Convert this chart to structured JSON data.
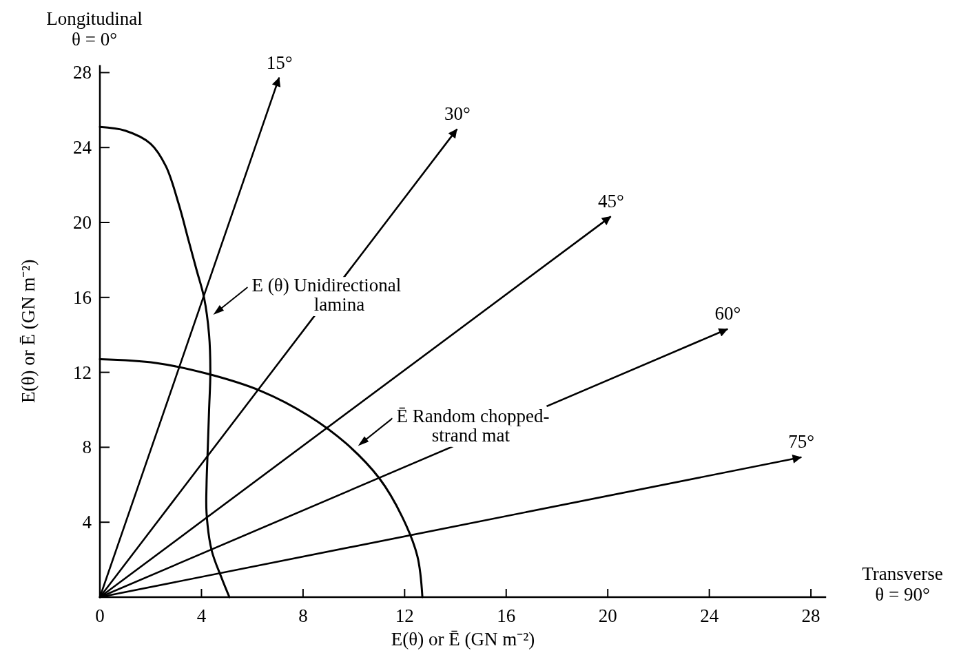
{
  "chart_data": {
    "type": "line",
    "xlabel": "E(θ) or Ē (GN m⁻²)",
    "ylabel": "E(θ) or Ē (GN m⁻²)",
    "xlim": [
      0,
      28.6
    ],
    "ylim": [
      0,
      28.4
    ],
    "xticks": [
      0,
      4,
      8,
      12,
      16,
      20,
      24,
      28
    ],
    "yticks": [
      4,
      8,
      12,
      16,
      20,
      24,
      28
    ],
    "grid": false,
    "legend": false,
    "marker": "none",
    "line_style": "solid",
    "series": [
      {
        "color": "#000000",
        "x": [
          0,
          1,
          2,
          2.6,
          3.1,
          3.5,
          3.8,
          4.1,
          4.3,
          4.35,
          4.3,
          4.25,
          4.2,
          4.2,
          4.4,
          4.8,
          5.1
        ],
        "values": [
          25.1,
          24.9,
          24.2,
          23,
          21,
          19,
          17.5,
          16,
          14,
          12,
          10,
          8,
          6,
          4.5,
          2.5,
          1,
          0
        ]
      },
      {
        "color": "#000000",
        "x": [
          0,
          2.2,
          4.3,
          6.35,
          8.2,
          9.7,
          11.0,
          11.9,
          12.5,
          12.7
        ],
        "values": [
          12.7,
          12.5,
          11.9,
          11.0,
          9.7,
          8.2,
          6.35,
          4.3,
          2.2,
          0
        ]
      },
      {
        "name": "15°",
        "color": "#000000",
        "x": [
          0,
          7.05
        ],
        "values": [
          0,
          27.7
        ]
      },
      {
        "name": "30°",
        "color": "#000000",
        "x": [
          0,
          14.05
        ],
        "values": [
          0,
          24.96
        ]
      },
      {
        "name": "45°",
        "color": "#000000",
        "x": [
          0,
          20.1
        ],
        "values": [
          0,
          20.3
        ]
      },
      {
        "name": "60°",
        "color": "#000000",
        "x": [
          0,
          24.7
        ],
        "values": [
          0,
          14.3
        ]
      },
      {
        "name": "75°",
        "color": "#000000",
        "x": [
          0,
          27.6
        ],
        "values": [
          0,
          7.46
        ]
      }
    ],
    "annotations": [
      {
        "text": "E (θ) Unidirectional\nlamina",
        "x": 4.3,
        "y": 15
      },
      {
        "text": "Ē Random chopped-\nstrand mat",
        "x": 10.0,
        "y": 8.0
      },
      "Longitudinal\nθ = 0°",
      "Transverse\nθ = 90°"
    ]
  }
}
